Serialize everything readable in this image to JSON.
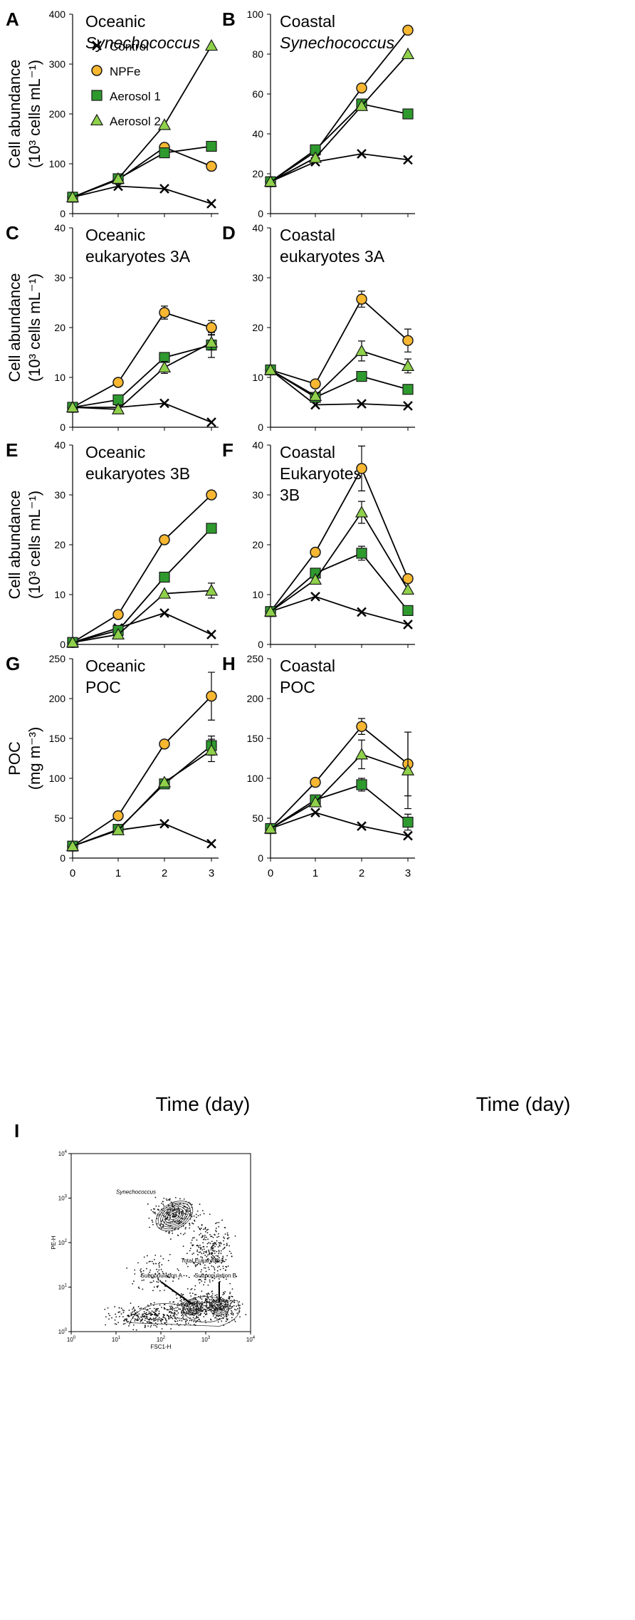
{
  "figure": {
    "legend": {
      "entries": [
        "Control",
        "NPFe",
        "Aerosol 1",
        "Aerosol 2"
      ]
    },
    "x_axis_title": "Time (day)",
    "x_tick_labels": [
      "0",
      "1",
      "2",
      "3"
    ]
  },
  "chart_data": [
    {
      "type": "line",
      "panel": "A",
      "title_lines": [
        "Oceanic",
        "Synechococcus"
      ],
      "ylabel_lines": [
        "Cell abundance",
        "(10³ cells mL⁻¹)"
      ],
      "ylim": [
        0,
        400
      ],
      "yticks": [
        "0",
        "100",
        "200",
        "300",
        "400"
      ],
      "x": [
        0,
        1,
        2,
        3
      ],
      "series": [
        {
          "name": "Control",
          "values": [
            33,
            55,
            50,
            20
          ]
        },
        {
          "name": "NPFe",
          "values": [
            33,
            68,
            133,
            95
          ]
        },
        {
          "name": "Aerosol 1",
          "values": [
            33,
            70,
            122,
            135
          ]
        },
        {
          "name": "Aerosol 2",
          "values": [
            33,
            70,
            178,
            337
          ]
        }
      ]
    },
    {
      "type": "line",
      "panel": "B",
      "title_lines": [
        "Coastal",
        "Synechococcus"
      ],
      "ylabel_lines": [],
      "ylim": [
        0,
        100
      ],
      "yticks": [
        "0",
        "20",
        "40",
        "60",
        "80",
        "100"
      ],
      "x": [
        0,
        1,
        2,
        3
      ],
      "series": [
        {
          "name": "Control",
          "values": [
            16,
            26,
            30,
            27
          ]
        },
        {
          "name": "NPFe",
          "values": [
            16,
            31,
            63,
            92
          ]
        },
        {
          "name": "Aerosol 1",
          "values": [
            16,
            32,
            55,
            50
          ]
        },
        {
          "name": "Aerosol 2",
          "values": [
            16,
            28,
            54,
            80
          ]
        }
      ]
    },
    {
      "type": "line",
      "panel": "C",
      "title_lines": [
        "Oceanic",
        "eukaryotes 3A"
      ],
      "ylabel_lines": [
        "Cell abundance",
        "(10³ cells mL⁻¹)"
      ],
      "ylim": [
        0,
        40
      ],
      "yticks": [
        "0",
        "10",
        "20",
        "30",
        "40"
      ],
      "x": [
        0,
        1,
        2,
        3
      ],
      "series": [
        {
          "name": "Control",
          "values": [
            4,
            4,
            4.8,
            1
          ]
        },
        {
          "name": "NPFe",
          "values": [
            4,
            9,
            23,
            20
          ],
          "errors": [
            0,
            0,
            1.3,
            1.4
          ]
        },
        {
          "name": "Aerosol 1",
          "values": [
            4,
            5.5,
            14,
            16.5
          ],
          "errors": [
            0,
            0,
            0,
            2.5
          ]
        },
        {
          "name": "Aerosol 2",
          "values": [
            4,
            3.6,
            12,
            17
          ],
          "errors": [
            0,
            0,
            1.2,
            1.5
          ]
        }
      ]
    },
    {
      "type": "line",
      "panel": "D",
      "title_lines": [
        "Coastal",
        "eukaryotes 3A"
      ],
      "ylabel_lines": [],
      "ylim": [
        0,
        40
      ],
      "yticks": [
        "0",
        "10",
        "20",
        "30",
        "40"
      ],
      "x": [
        0,
        1,
        2,
        3
      ],
      "series": [
        {
          "name": "Control",
          "values": [
            11.5,
            4.5,
            4.7,
            4.3
          ]
        },
        {
          "name": "NPFe",
          "values": [
            11.5,
            8.7,
            25.7,
            17.4
          ],
          "errors": [
            0,
            0,
            1.6,
            2.3
          ]
        },
        {
          "name": "Aerosol 1",
          "values": [
            11.5,
            6,
            10.2,
            7.6
          ]
        },
        {
          "name": "Aerosol 2",
          "values": [
            11.5,
            6.3,
            15.3,
            12.3
          ],
          "errors": [
            0,
            0,
            2,
            1.4
          ]
        }
      ]
    },
    {
      "type": "line",
      "panel": "E",
      "title_lines": [
        "Oceanic",
        "eukaryotes 3B"
      ],
      "ylabel_lines": [
        "Cell abundance",
        "(10³ cells mL⁻¹)"
      ],
      "ylim": [
        0,
        40
      ],
      "yticks": [
        "0",
        "10",
        "20",
        "30",
        "40"
      ],
      "x": [
        0,
        1,
        2,
        3
      ],
      "series": [
        {
          "name": "Control",
          "values": [
            0.4,
            3.3,
            6.3,
            2
          ]
        },
        {
          "name": "NPFe",
          "values": [
            0.4,
            6,
            21,
            30
          ]
        },
        {
          "name": "Aerosol 1",
          "values": [
            0.4,
            2.8,
            13.5,
            23.3
          ]
        },
        {
          "name": "Aerosol 2",
          "values": [
            0.4,
            2,
            10.2,
            10.8
          ],
          "errors": [
            0,
            0,
            0,
            1.5
          ]
        }
      ]
    },
    {
      "type": "line",
      "panel": "F",
      "title_lines": [
        "Coastal",
        "Eukaryotes",
        "3B"
      ],
      "ylabel_lines": [],
      "ylim": [
        0,
        40
      ],
      "yticks": [
        "0",
        "10",
        "20",
        "30",
        "40"
      ],
      "x": [
        0,
        1,
        2,
        3
      ],
      "series": [
        {
          "name": "Control",
          "values": [
            6.6,
            9.6,
            6.5,
            4
          ]
        },
        {
          "name": "NPFe",
          "values": [
            6.6,
            18.5,
            35.3,
            13.2
          ],
          "errors": [
            0,
            0,
            4.5,
            0
          ]
        },
        {
          "name": "Aerosol 1",
          "values": [
            6.6,
            14.3,
            18.3,
            6.8
          ],
          "errors": [
            0,
            0,
            1.4,
            0
          ]
        },
        {
          "name": "Aerosol 2",
          "values": [
            6.6,
            13,
            26.5,
            11
          ],
          "errors": [
            0,
            0,
            2.2,
            0
          ]
        }
      ]
    },
    {
      "type": "line",
      "panel": "G",
      "title_lines": [
        "Oceanic",
        "POC"
      ],
      "ylabel_lines": [
        "POC",
        "(mg m⁻³)"
      ],
      "ylim": [
        0,
        250
      ],
      "yticks": [
        "0",
        "50",
        "100",
        "150",
        "200",
        "250"
      ],
      "x": [
        0,
        1,
        2,
        3
      ],
      "series": [
        {
          "name": "Control",
          "values": [
            15,
            35,
            43,
            18
          ]
        },
        {
          "name": "NPFe",
          "values": [
            15,
            53,
            143,
            203
          ],
          "errors": [
            0,
            0,
            0,
            30
          ]
        },
        {
          "name": "Aerosol 1",
          "values": [
            15,
            36,
            93,
            141
          ],
          "errors": [
            0,
            0,
            0,
            12
          ]
        },
        {
          "name": "Aerosol 2",
          "values": [
            15,
            35,
            95,
            135
          ],
          "errors": [
            0,
            0,
            0,
            14
          ]
        }
      ]
    },
    {
      "type": "line",
      "panel": "H",
      "title_lines": [
        "Coastal",
        "POC"
      ],
      "ylabel_lines": [],
      "ylim": [
        0,
        250
      ],
      "yticks": [
        "0",
        "50",
        "100",
        "150",
        "200",
        "250"
      ],
      "x": [
        0,
        1,
        2,
        3
      ],
      "series": [
        {
          "name": "Control",
          "values": [
            37,
            57,
            40,
            28
          ]
        },
        {
          "name": "NPFe",
          "values": [
            37,
            95,
            165,
            118
          ],
          "errors": [
            0,
            0,
            10,
            40
          ]
        },
        {
          "name": "Aerosol 1",
          "values": [
            37,
            73,
            92,
            45
          ],
          "errors": [
            0,
            0,
            8,
            10
          ]
        },
        {
          "name": "Aerosol 2",
          "values": [
            37,
            70,
            130,
            110
          ],
          "errors": [
            0,
            0,
            18,
            48
          ]
        }
      ]
    },
    {
      "type": "scatter",
      "panel": "I",
      "xlabel": "FSC1-H",
      "ylabel": "PE-H",
      "x_scale": "log",
      "y_scale": "log",
      "xticks": [
        {
          "base": "10",
          "exp": "0"
        },
        {
          "base": "10",
          "exp": "1"
        },
        {
          "base": "10",
          "exp": "2"
        },
        {
          "base": "10",
          "exp": "3"
        },
        {
          "base": "10",
          "exp": "4"
        }
      ],
      "yticks": [
        {
          "base": "10",
          "exp": "0"
        },
        {
          "base": "10",
          "exp": "1"
        },
        {
          "base": "10",
          "exp": "2"
        },
        {
          "base": "10",
          "exp": "3"
        },
        {
          "base": "10",
          "exp": "4"
        }
      ],
      "annotations": [
        "Synechococcus",
        "Total Eukaryotes",
        "Subpopulation A",
        "Subpopulation B"
      ],
      "populations": [
        {
          "name": "Synechococcus",
          "center_log": [
            2.3,
            2.6
          ]
        },
        {
          "name": "Subpopulation A",
          "center_log": [
            2.7,
            0.55
          ]
        },
        {
          "name": "Subpopulation B",
          "center_log": [
            3.3,
            0.55
          ]
        }
      ]
    }
  ],
  "colors": {
    "control": "#000000",
    "npfe": "#f7b731",
    "aerosol1": "#2e9a2e",
    "aerosol2": "#8fd14a",
    "marker_edge": "#1a1a1a",
    "contour": "#333333"
  }
}
